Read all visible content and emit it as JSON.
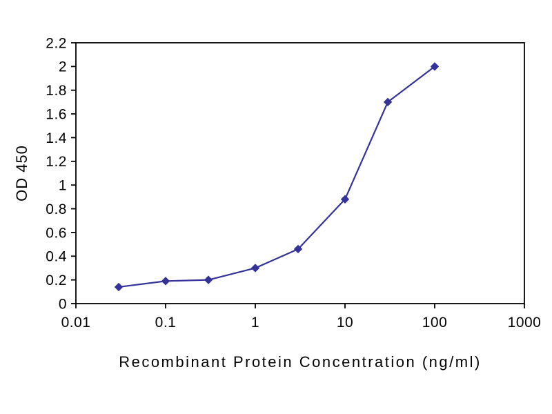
{
  "chart_data": {
    "type": "line",
    "title": "",
    "xlabel": "Recombinant Protein Concentration (ng/ml)",
    "ylabel": "OD 450",
    "x_scale": "log",
    "x": [
      0.03,
      0.1,
      0.3,
      1,
      3,
      10,
      30,
      100
    ],
    "y": [
      0.14,
      0.19,
      0.2,
      0.3,
      0.46,
      0.88,
      1.7,
      2.0
    ],
    "xlim": [
      0.01,
      1000
    ],
    "ylim": [
      0,
      2.2
    ],
    "xticks": [
      0.01,
      0.1,
      1,
      10,
      100,
      1000
    ],
    "yticks": [
      0,
      0.2,
      0.4,
      0.6,
      0.8,
      1,
      1.2,
      1.4,
      1.6,
      1.8,
      2,
      2.2
    ],
    "grid": false,
    "legend": false,
    "series_color": "#333399",
    "axis_color": "#000000",
    "marker": "diamond"
  }
}
